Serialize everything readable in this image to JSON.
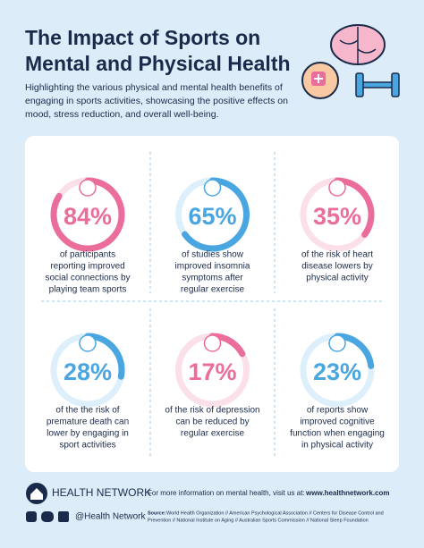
{
  "header": {
    "title_lines": [
      "The Impact of Sports on",
      "Mental and Physical Health"
    ],
    "subtitle_lines": [
      "Highlighting the various physical and mental health benefits of",
      "engaging in sports activities, showcasing the positive effects on",
      "mood, stress reduction, and overall well-being."
    ]
  },
  "stats": [
    {
      "value": 84,
      "label": "84%",
      "color": "#ea6d9c",
      "lines": [
        "of participants",
        "reporting improved",
        "social connections by",
        "playing team sports"
      ]
    },
    {
      "value": 65,
      "label": "65%",
      "color": "#4aa6e0",
      "lines": [
        "of studies show",
        "improved insomnia",
        "symptoms after",
        "regular exercise"
      ]
    },
    {
      "value": 35,
      "label": "35%",
      "color": "#ea6d9c",
      "lines": [
        "of the risk of heart",
        "disease lowers by",
        "physical activity"
      ]
    },
    {
      "value": 28,
      "label": "28%",
      "color": "#4aa6e0",
      "lines": [
        "of the the risk of",
        "premature death can",
        "lower by engaging in",
        "sport activities"
      ]
    },
    {
      "value": 17,
      "label": "17%",
      "color": "#ea6d9c",
      "lines": [
        "of the risk of depression",
        "can be reduced by",
        "regular exercise"
      ]
    },
    {
      "value": 23,
      "label": "23%",
      "color": "#4aa6e0",
      "lines": [
        "of reports show",
        "improved cognitive",
        "function when engaging",
        "in physical activity"
      ]
    }
  ],
  "footer": {
    "brand": "HEALTH NETWORK",
    "handle": "@Health Network",
    "info": "For more information on mental health, visit us at:",
    "url": "www.healthnetwork.com",
    "source_label": "Source:",
    "source_lines": [
      "World Health Organization // American Psychological Association // Centers for Disease Control and",
      "Prevention // National Institute on Aging // Australian Sports Commission // National Sleep Foundation"
    ]
  }
}
